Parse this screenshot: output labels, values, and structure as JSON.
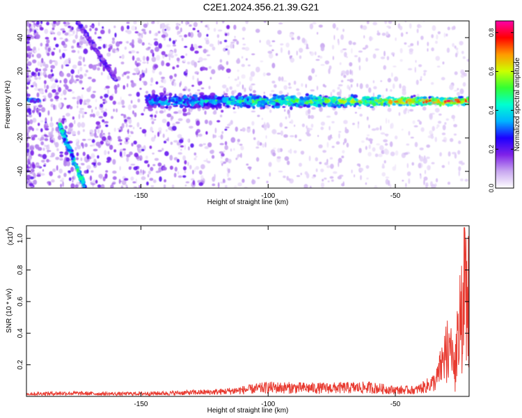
{
  "figure": {
    "title": "C2E1.2024.356.21.39.G21"
  },
  "chart_data": [
    {
      "type": "heatmap",
      "title": "",
      "xlabel": "Height of straight line (km)",
      "ylabel": "Frequency (Hz)",
      "xlim": [
        -195,
        -21
      ],
      "ylim": [
        -50,
        50
      ],
      "xticks": [
        -150,
        -100,
        -50
      ],
      "yticks": [
        -40,
        -20,
        0,
        20,
        40
      ],
      "colorbar": {
        "label": "Normalized spectral amplitude",
        "range": [
          0,
          0.86
        ],
        "ticks": [
          0.0,
          0.2,
          0.4,
          0.6,
          0.8
        ],
        "colors": [
          "#ffffff",
          "#c9a8f0",
          "#7f22e8",
          "#1d00ff",
          "#00b4ff",
          "#00ffd0",
          "#33ff33",
          "#ccff00",
          "#ff9900",
          "#ff0000",
          "#ff00aa"
        ]
      },
      "features": [
        {
          "name": "band",
          "x_start": -148,
          "x_end": -21,
          "freq_center": 2,
          "freq_halfwidth_start": 6,
          "freq_halfwidth_end": 3,
          "amp_start": 0.3,
          "amp_end": 0.7
        },
        {
          "name": "left-streak",
          "points": [
            [
              -195,
              3
            ],
            [
              -190,
              2
            ]
          ],
          "amp": 0.3
        },
        {
          "name": "diagonal-streak-1",
          "points": [
            [
              -182,
              -12
            ],
            [
              -172,
              -50
            ]
          ],
          "amp": 0.4
        },
        {
          "name": "diagonal-streak-2",
          "points": [
            [
              -175,
              50
            ],
            [
              -160,
              15
            ]
          ],
          "amp": 0.2
        }
      ]
    },
    {
      "type": "line",
      "title": "",
      "xlabel": "Height of straight line (km)",
      "ylabel": "SNR (10 * v/v)",
      "scale_label": "(x10",
      "scale_exp": "4",
      "scale_close": ")",
      "xlim": [
        -195,
        -21
      ],
      "ylim": [
        0,
        1.08
      ],
      "xticks": [
        -150,
        -100,
        -50
      ],
      "yticks": [
        0.2,
        0.4,
        0.6,
        0.8,
        1.0
      ],
      "color": "#e83a30",
      "profile": [
        [
          -195,
          0.02
        ],
        [
          -180,
          0.025
        ],
        [
          -160,
          0.02
        ],
        [
          -140,
          0.025
        ],
        [
          -120,
          0.035
        ],
        [
          -110,
          0.05
        ],
        [
          -100,
          0.07
        ],
        [
          -80,
          0.065
        ],
        [
          -60,
          0.07
        ],
        [
          -50,
          0.05
        ],
        [
          -42,
          0.05
        ],
        [
          -38,
          0.08
        ],
        [
          -34,
          0.12
        ],
        [
          -31,
          0.3
        ],
        [
          -29,
          0.45
        ],
        [
          -27,
          0.2
        ],
        [
          -25,
          0.55
        ],
        [
          -24,
          0.6
        ],
        [
          -23,
          1.0
        ],
        [
          -22,
          1.05
        ],
        [
          -21,
          0.65
        ]
      ]
    }
  ]
}
